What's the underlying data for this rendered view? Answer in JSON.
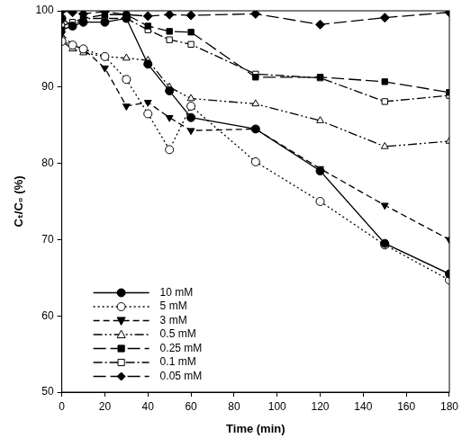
{
  "chart_data": {
    "type": "line",
    "x_label": "Time (min)",
    "y_label": "Cₜ/C₀ (%)",
    "x": [
      0,
      5,
      10,
      20,
      30,
      40,
      50,
      60,
      90,
      120,
      150,
      180
    ],
    "xlim": [
      0,
      180
    ],
    "xticks": [
      0,
      20,
      40,
      60,
      80,
      100,
      120,
      140,
      160,
      180
    ],
    "ylim": [
      50,
      100
    ],
    "yticks": [
      50,
      60,
      70,
      80,
      90,
      100
    ],
    "grid": false,
    "legend": "lower left",
    "series": [
      {
        "name": "10 mM",
        "color": "#000000",
        "marker": "circle",
        "line_style": "solid",
        "values": [
          99,
          98,
          98.5,
          98.5,
          99,
          93,
          89.5,
          86,
          84.5,
          79,
          69.5,
          65.5
        ]
      },
      {
        "name": "5 mM",
        "color": "#000000",
        "marker": "circle-open",
        "line_style": "dotted",
        "values": [
          96,
          95.5,
          95,
          94,
          91,
          86.5,
          81.8,
          87.5,
          80.2,
          75,
          69.3,
          64.7
        ]
      },
      {
        "name": "3 mM",
        "color": "#000000",
        "marker": "triangle-down",
        "line_style": "dashed",
        "values": [
          97,
          95.5,
          95,
          92.5,
          87.5,
          88,
          86,
          84.3,
          84.5,
          79.3,
          74.5,
          70
        ]
      },
      {
        "name": "0.5 mM",
        "color": "#000000",
        "marker": "triangle-open",
        "line_style": "dash-dot-dot",
        "values": [
          96,
          95,
          94.5,
          94,
          93.8,
          93.5,
          90,
          88.5,
          87.8,
          85.6,
          82.2,
          82.9
        ]
      },
      {
        "name": "0.25 mM",
        "color": "#000000",
        "marker": "square",
        "line_style": "long-dash",
        "values": [
          97.5,
          98,
          99,
          99.5,
          99.5,
          98,
          97.3,
          97.2,
          91.3,
          91.3,
          90.7,
          89.3
        ]
      },
      {
        "name": "0.1 mM",
        "color": "#000000",
        "marker": "square-open",
        "line_style": "dash-dot",
        "values": [
          98,
          98.5,
          99,
          99,
          99,
          97.5,
          96.2,
          95.6,
          91.7,
          91.2,
          88.1,
          88.9
        ]
      },
      {
        "name": "0.05 mM",
        "color": "#000000",
        "marker": "diamond",
        "line_style": "long-dash",
        "values": [
          100,
          99.8,
          99.6,
          99.9,
          99.5,
          99.3,
          99.5,
          99.4,
          99.6,
          98.2,
          99.1,
          99.8
        ]
      }
    ]
  }
}
